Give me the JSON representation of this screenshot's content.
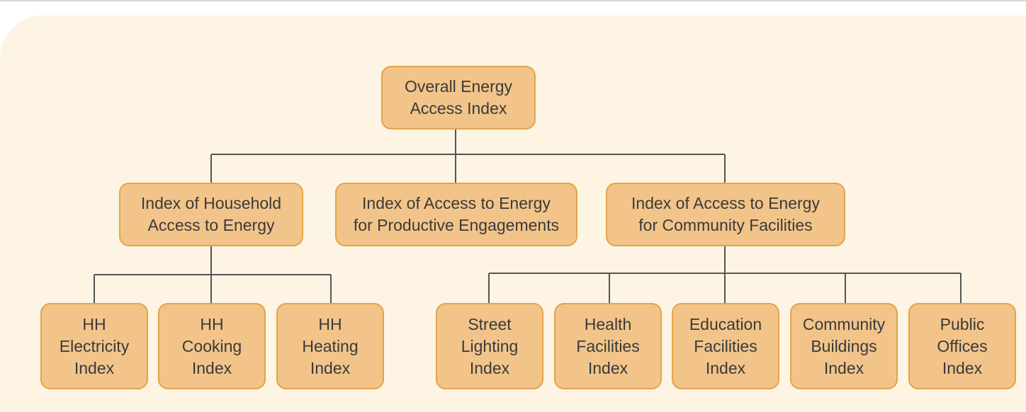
{
  "root": {
    "lines": [
      "Overall Energy",
      "Access Index"
    ]
  },
  "level2": {
    "household": {
      "lines": [
        "Index of Household",
        "Access to Energy"
      ]
    },
    "productive": {
      "lines": [
        "Index of Access to Energy",
        "for Productive Engagements"
      ]
    },
    "community": {
      "lines": [
        "Index of Access to Energy",
        "for Community Facilities"
      ]
    }
  },
  "household_children": [
    {
      "lines": [
        "HH",
        "Electricity",
        "Index"
      ]
    },
    {
      "lines": [
        "HH",
        "Cooking",
        "Index"
      ]
    },
    {
      "lines": [
        "HH",
        "Heating",
        "Index"
      ]
    }
  ],
  "community_children": [
    {
      "lines": [
        "Street",
        "Lighting",
        "Index"
      ]
    },
    {
      "lines": [
        "Health",
        "Facilities",
        "Index"
      ]
    },
    {
      "lines": [
        "Education",
        "Facilities",
        "Index"
      ]
    },
    {
      "lines": [
        "Community",
        "Buildings",
        "Index"
      ]
    },
    {
      "lines": [
        "Public",
        "Offices",
        "Index"
      ]
    }
  ],
  "colors": {
    "panel": "#fdf4e3",
    "node_fill": "#f2c48a",
    "node_border": "#e3a447",
    "connector": "#555555",
    "text": "#3a3a3a"
  }
}
